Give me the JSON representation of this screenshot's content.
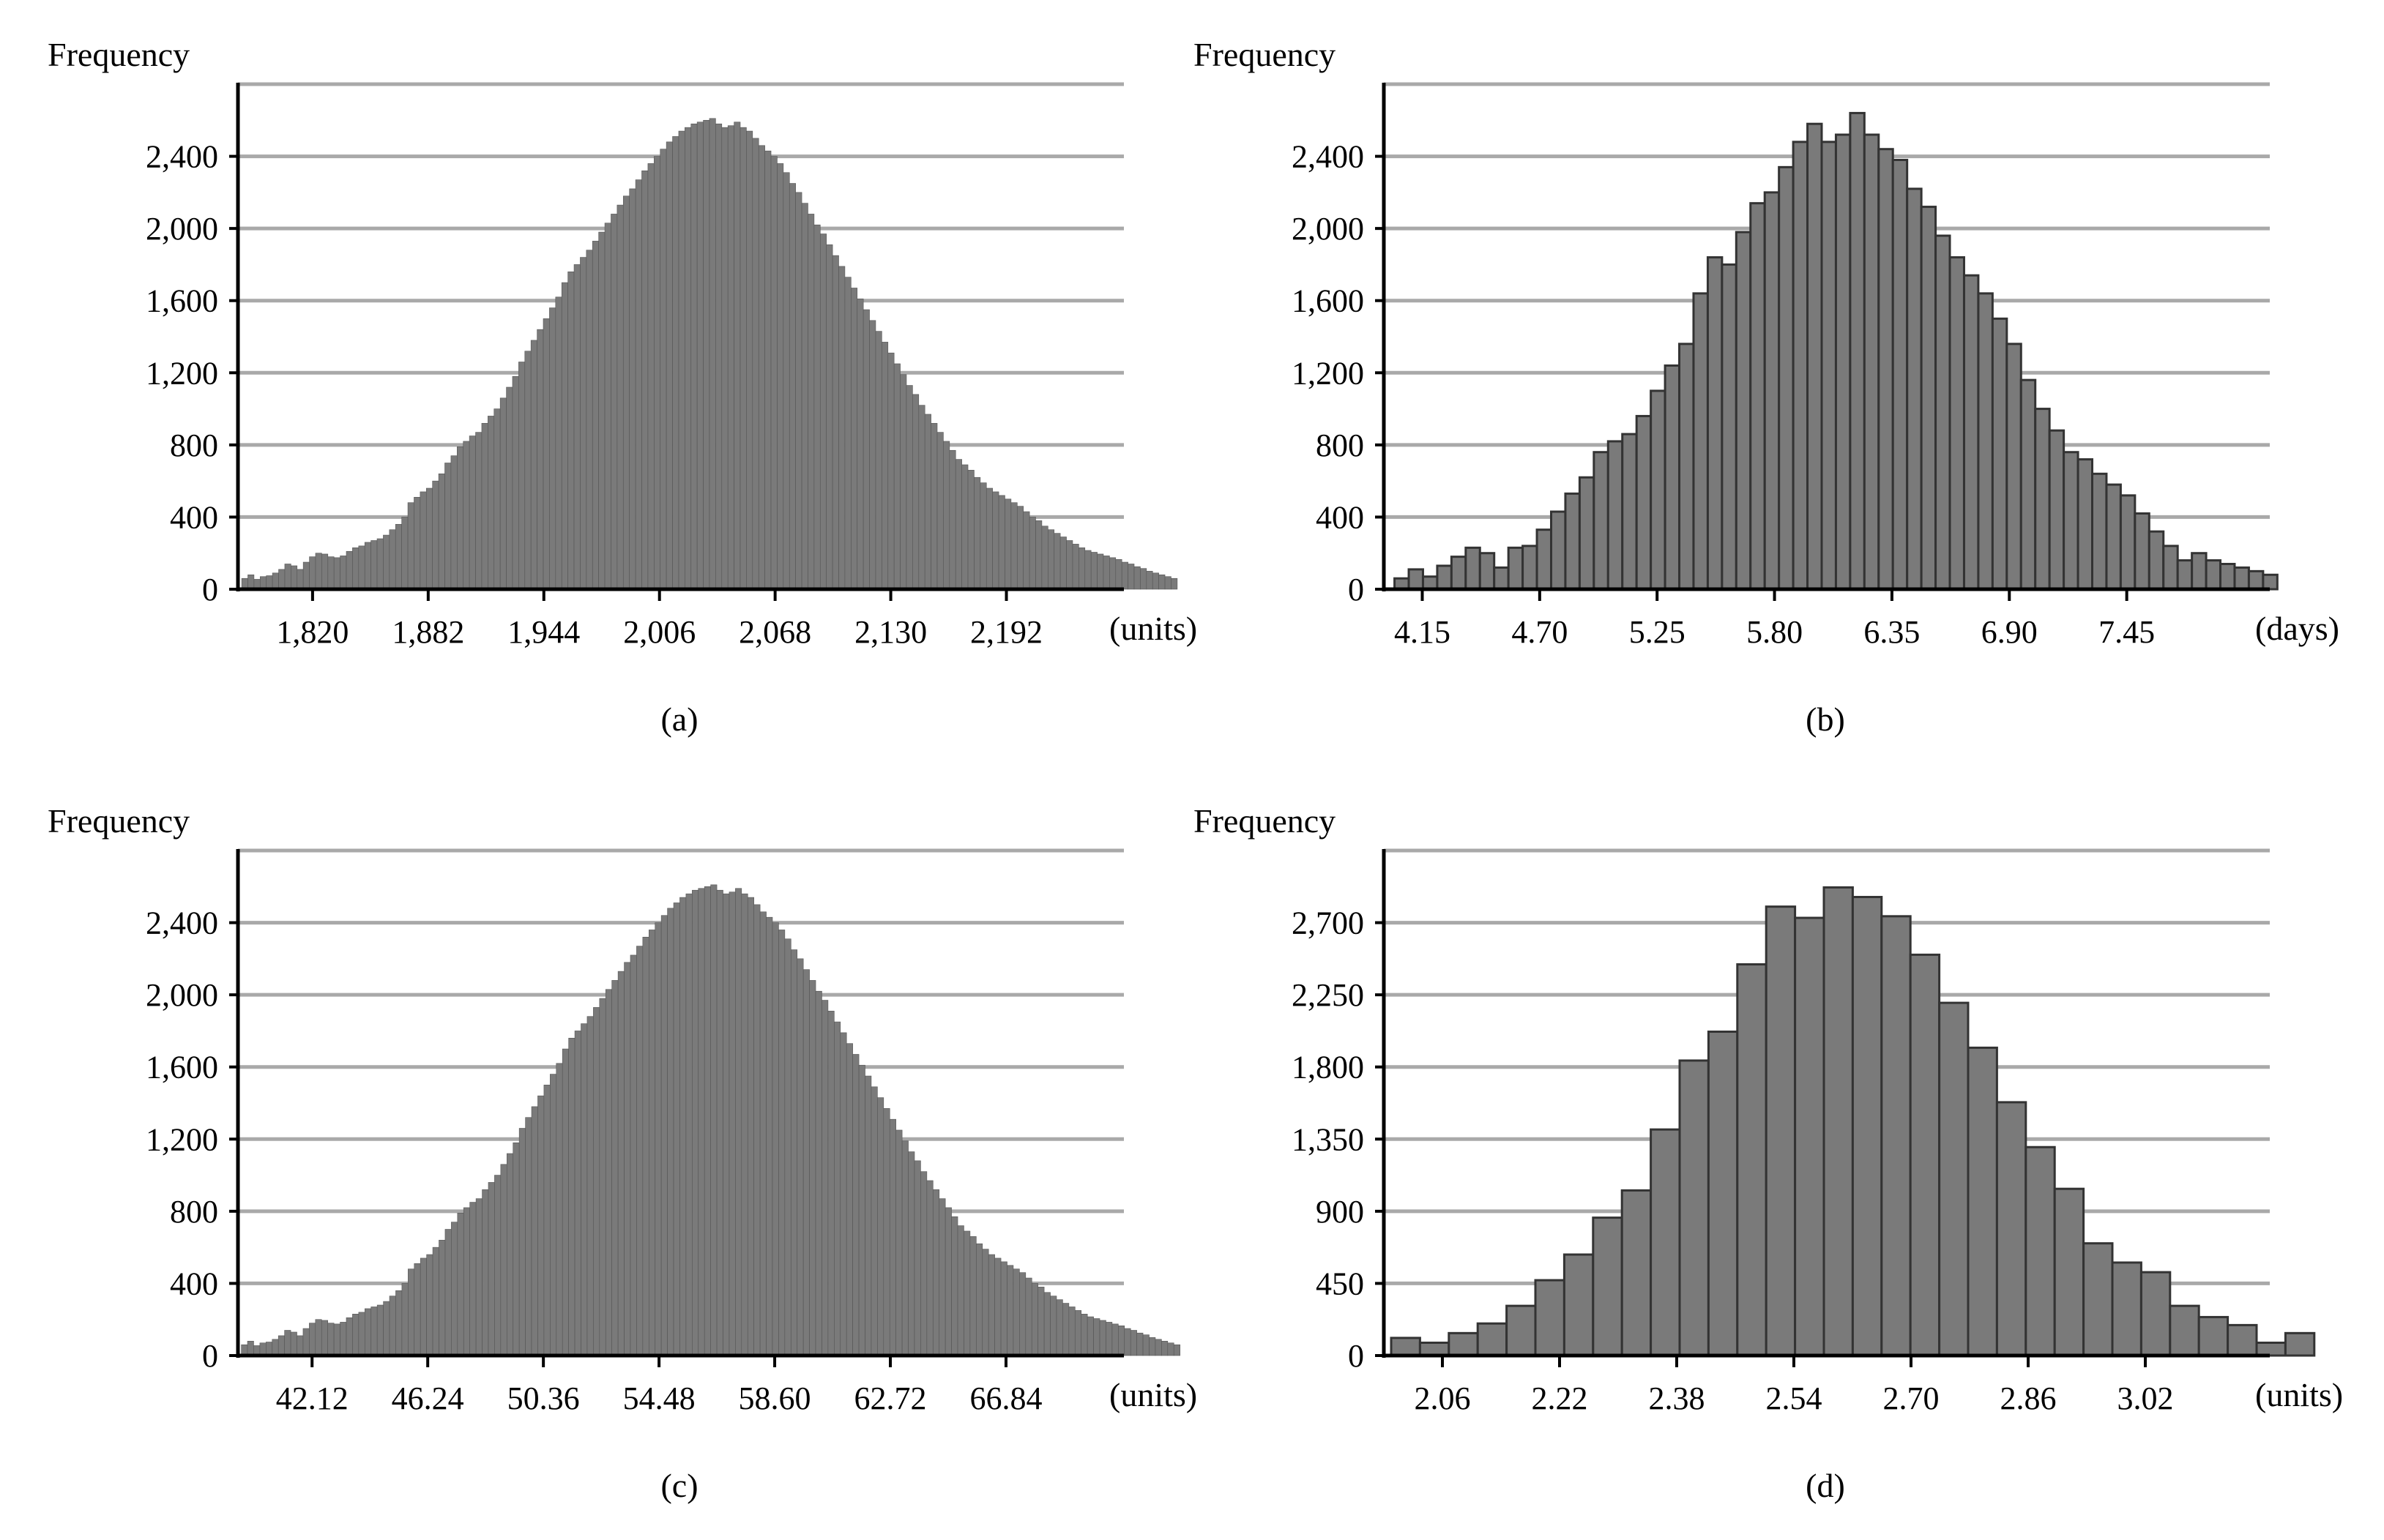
{
  "chart_data": [
    {
      "type": "bar",
      "panel_label": "(a)",
      "ylabel": "Frequency",
      "unit_label": "(units)",
      "y_ticks": [
        0,
        400,
        800,
        1200,
        1600,
        2000,
        2400
      ],
      "y_tick_labels": [
        "0",
        "400",
        "800",
        "1,200",
        "1,600",
        "2,000",
        "2,400"
      ],
      "ylim": [
        0,
        2800
      ],
      "x_ticks": [
        1820,
        1882,
        1944,
        2006,
        2068,
        2130,
        2192
      ],
      "x_tick_labels": [
        "1,820",
        "1,882",
        "1,944",
        "2,006",
        "2,068",
        "2,130",
        "2,192"
      ],
      "xlim": [
        1780,
        2255
      ],
      "bin_start": 1782,
      "bin_width": 3.3,
      "grid": true,
      "bar_color": "#7a7a7a",
      "stroke_color": "#555555",
      "draw_bin_borders": false,
      "values": [
        60,
        80,
        55,
        70,
        75,
        90,
        110,
        140,
        130,
        110,
        150,
        180,
        200,
        195,
        180,
        175,
        185,
        210,
        230,
        240,
        260,
        270,
        280,
        300,
        330,
        360,
        400,
        480,
        510,
        540,
        560,
        600,
        640,
        700,
        740,
        790,
        820,
        850,
        870,
        920,
        960,
        1000,
        1060,
        1120,
        1180,
        1260,
        1320,
        1380,
        1440,
        1500,
        1560,
        1620,
        1700,
        1760,
        1800,
        1840,
        1880,
        1930,
        1980,
        2030,
        2080,
        2130,
        2180,
        2220,
        2270,
        2320,
        2360,
        2400,
        2440,
        2480,
        2510,
        2540,
        2560,
        2580,
        2590,
        2600,
        2610,
        2580,
        2560,
        2570,
        2590,
        2560,
        2540,
        2500,
        2460,
        2430,
        2400,
        2360,
        2310,
        2250,
        2200,
        2140,
        2080,
        2020,
        1970,
        1910,
        1850,
        1790,
        1730,
        1670,
        1610,
        1550,
        1490,
        1430,
        1370,
        1310,
        1250,
        1190,
        1130,
        1080,
        1020,
        970,
        920,
        870,
        820,
        770,
        720,
        690,
        660,
        620,
        590,
        560,
        540,
        520,
        500,
        480,
        460,
        430,
        400,
        380,
        350,
        330,
        310,
        290,
        270,
        250,
        230,
        215,
        205,
        195,
        185,
        175,
        165,
        150,
        140,
        125,
        115,
        100,
        90,
        80,
        70,
        60
      ]
    },
    {
      "type": "bar",
      "panel_label": "(b)",
      "ylabel": "Frequency",
      "unit_label": "(days)",
      "y_ticks": [
        0,
        400,
        800,
        1200,
        1600,
        2000,
        2400
      ],
      "y_tick_labels": [
        "0",
        "400",
        "800",
        "1,200",
        "1,600",
        "2,000",
        "2,400"
      ],
      "ylim": [
        0,
        2800
      ],
      "x_ticks": [
        4.15,
        4.7,
        5.25,
        5.8,
        6.35,
        6.9,
        7.45
      ],
      "x_tick_labels": [
        "4.15",
        "4.70",
        "5.25",
        "5.80",
        "6.35",
        "6.90",
        "7.45"
      ],
      "xlim": [
        3.97,
        8.12
      ],
      "bin_start": 4.02,
      "bin_width": 0.0667,
      "grid": true,
      "bar_color": "#7a7a7a",
      "stroke_color": "#333333",
      "draw_bin_borders": true,
      "values": [
        60,
        110,
        70,
        130,
        180,
        230,
        200,
        120,
        230,
        240,
        330,
        430,
        530,
        620,
        760,
        820,
        860,
        960,
        1100,
        1240,
        1360,
        1640,
        1840,
        1800,
        1980,
        2140,
        2200,
        2340,
        2480,
        2580,
        2480,
        2520,
        2640,
        2520,
        2440,
        2380,
        2220,
        2120,
        1960,
        1840,
        1740,
        1640,
        1500,
        1360,
        1160,
        1000,
        880,
        760,
        720,
        640,
        580,
        520,
        420,
        320,
        240,
        160,
        200,
        160,
        140,
        120,
        100,
        80
      ]
    },
    {
      "type": "bar",
      "panel_label": "(c)",
      "ylabel": "Frequency",
      "unit_label": "(units)",
      "y_ticks": [
        0,
        400,
        800,
        1200,
        1600,
        2000,
        2400
      ],
      "y_tick_labels": [
        "0",
        "400",
        "800",
        "1,200",
        "1,600",
        "2,000",
        "2,400"
      ],
      "ylim": [
        0,
        2800
      ],
      "x_ticks": [
        42.12,
        46.24,
        50.36,
        54.48,
        58.6,
        62.72,
        66.84
      ],
      "x_tick_labels": [
        "42.12",
        "46.24",
        "50.36",
        "54.48",
        "58.60",
        "62.72",
        "66.84"
      ],
      "xlim": [
        39.48,
        71.04
      ],
      "bin_start": 39.6,
      "bin_width": 0.22,
      "grid": true,
      "bar_color": "#7a7a7a",
      "stroke_color": "#555555",
      "draw_bin_borders": false,
      "values": [
        60,
        80,
        55,
        70,
        75,
        90,
        110,
        140,
        130,
        110,
        150,
        180,
        200,
        195,
        180,
        175,
        185,
        210,
        230,
        240,
        260,
        270,
        280,
        300,
        330,
        360,
        400,
        480,
        510,
        540,
        560,
        600,
        640,
        700,
        740,
        790,
        820,
        850,
        870,
        920,
        960,
        1000,
        1060,
        1120,
        1180,
        1260,
        1320,
        1380,
        1440,
        1500,
        1560,
        1620,
        1700,
        1760,
        1800,
        1840,
        1880,
        1930,
        1980,
        2030,
        2080,
        2130,
        2180,
        2220,
        2270,
        2320,
        2360,
        2400,
        2440,
        2480,
        2510,
        2540,
        2560,
        2580,
        2590,
        2600,
        2610,
        2580,
        2560,
        2570,
        2590,
        2560,
        2540,
        2500,
        2460,
        2430,
        2400,
        2360,
        2310,
        2250,
        2200,
        2140,
        2080,
        2020,
        1970,
        1910,
        1850,
        1790,
        1730,
        1670,
        1610,
        1550,
        1490,
        1430,
        1370,
        1310,
        1250,
        1190,
        1130,
        1080,
        1020,
        970,
        920,
        870,
        820,
        770,
        720,
        690,
        660,
        620,
        590,
        560,
        540,
        520,
        500,
        480,
        460,
        430,
        400,
        380,
        350,
        330,
        310,
        290,
        270,
        250,
        230,
        215,
        205,
        195,
        185,
        175,
        165,
        150,
        140,
        125,
        115,
        100,
        90,
        80,
        70,
        60
      ]
    },
    {
      "type": "bar",
      "panel_label": "(d)",
      "ylabel": "Frequency",
      "unit_label": "(units)",
      "y_ticks": [
        0,
        450,
        900,
        1350,
        1800,
        2250,
        2700
      ],
      "y_tick_labels": [
        "0",
        "450",
        "900",
        "1,350",
        "1,800",
        "2,250",
        "2,700"
      ],
      "ylim": [
        0,
        3150
      ],
      "x_ticks": [
        2.06,
        2.22,
        2.38,
        2.54,
        2.7,
        2.86,
        3.02
      ],
      "x_tick_labels": [
        "2.06",
        "2.22",
        "2.38",
        "2.54",
        "2.70",
        "2.86",
        "3.02"
      ],
      "xlim": [
        1.98,
        3.19
      ],
      "bin_start": 1.99,
      "bin_width": 0.0394,
      "grid": true,
      "bar_color": "#7a7a7a",
      "stroke_color": "#333333",
      "draw_bin_borders": true,
      "values": [
        110,
        80,
        140,
        200,
        310,
        470,
        630,
        860,
        1030,
        1410,
        1840,
        2020,
        2440,
        2800,
        2730,
        2920,
        2860,
        2740,
        2500,
        2200,
        1920,
        1580,
        1300,
        1040,
        700,
        580,
        520,
        310,
        240,
        190,
        80,
        140
      ]
    }
  ]
}
